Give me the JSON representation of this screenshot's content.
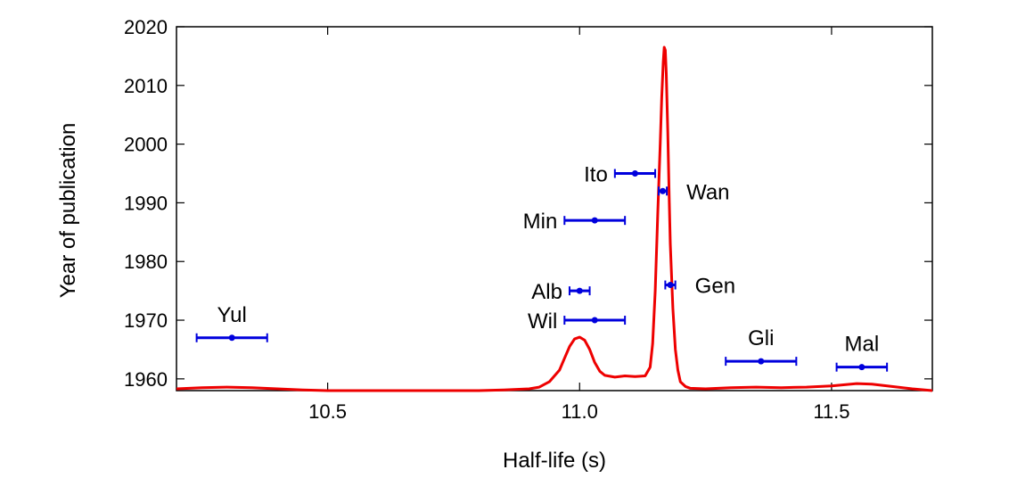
{
  "chart_data": {
    "type": "scatter",
    "xlabel": "Half-life (s)",
    "ylabel": "Year of publication",
    "xlim": [
      10.2,
      11.7
    ],
    "ylim": [
      1958,
      2020
    ],
    "x_ticks": [
      10.5,
      11.0,
      11.5
    ],
    "x_tick_labels": [
      "10.5",
      "11.0",
      "11.5"
    ],
    "y_ticks": [
      1960,
      1970,
      1980,
      1990,
      2000,
      2010,
      2020
    ],
    "y_tick_labels": [
      "1960",
      "1970",
      "1980",
      "1990",
      "2000",
      "2010",
      "2020"
    ],
    "grid": false,
    "colors": {
      "points": "#0000dd",
      "curve": "#ee0000",
      "axes": "#000000"
    },
    "series": [
      {
        "kind": "points-with-x-error-bars",
        "values": [
          {
            "label": "Yul",
            "x": 10.31,
            "y": 1967,
            "xerr": 0.07,
            "label_side": "above"
          },
          {
            "label": "Wil",
            "x": 11.03,
            "y": 1970,
            "xerr": 0.06,
            "label_side": "left"
          },
          {
            "label": "Alb",
            "x": 11.0,
            "y": 1975,
            "xerr": 0.02,
            "label_side": "left"
          },
          {
            "label": "Gen",
            "x": 11.18,
            "y": 1976,
            "xerr": 0.01,
            "label_side": "right"
          },
          {
            "label": "Min",
            "x": 11.03,
            "y": 1987,
            "xerr": 0.06,
            "label_side": "left"
          },
          {
            "label": "Wan",
            "x": 11.165,
            "y": 1992,
            "xerr": 0.008,
            "label_side": "right"
          },
          {
            "label": "Ito",
            "x": 11.11,
            "y": 1995,
            "xerr": 0.04,
            "label_side": "left"
          },
          {
            "label": "Gli",
            "x": 11.36,
            "y": 1963,
            "xerr": 0.07,
            "label_side": "above"
          },
          {
            "label": "Mal",
            "x": 11.56,
            "y": 1962,
            "xerr": 0.05,
            "label_side": "above"
          }
        ]
      },
      {
        "kind": "line",
        "x": [
          10.2,
          10.25,
          10.3,
          10.35,
          10.4,
          10.45,
          10.5,
          10.6,
          10.7,
          10.8,
          10.85,
          10.9,
          10.92,
          10.94,
          10.96,
          10.97,
          10.98,
          10.99,
          11.0,
          11.01,
          11.02,
          11.03,
          11.04,
          11.05,
          11.07,
          11.09,
          11.11,
          11.13,
          11.14,
          11.145,
          11.15,
          11.155,
          11.16,
          11.163,
          11.166,
          11.168,
          11.17,
          11.172,
          11.175,
          11.178,
          11.18,
          11.185,
          11.19,
          11.195,
          11.2,
          11.21,
          11.22,
          11.25,
          11.3,
          11.35,
          11.4,
          11.45,
          11.5,
          11.55,
          11.58,
          11.62,
          11.66,
          11.7
        ],
        "y": [
          1958.3,
          1958.5,
          1958.6,
          1958.5,
          1958.3,
          1958.1,
          1958.0,
          1958.0,
          1958.0,
          1958.0,
          1958.1,
          1958.3,
          1958.6,
          1959.5,
          1961.5,
          1963.5,
          1965.5,
          1966.8,
          1967.1,
          1966.6,
          1965.0,
          1962.8,
          1961.3,
          1960.6,
          1960.3,
          1960.5,
          1960.4,
          1960.5,
          1962.0,
          1966.0,
          1975.0,
          1988.0,
          2000.0,
          2008.0,
          2014.0,
          2016.5,
          2016.0,
          2012.0,
          2002.0,
          1990.0,
          1983.0,
          1972.0,
          1965.0,
          1961.5,
          1959.5,
          1958.7,
          1958.4,
          1958.3,
          1958.5,
          1958.6,
          1958.5,
          1958.6,
          1958.8,
          1959.2,
          1959.1,
          1958.7,
          1958.3,
          1958.0
        ]
      }
    ]
  }
}
